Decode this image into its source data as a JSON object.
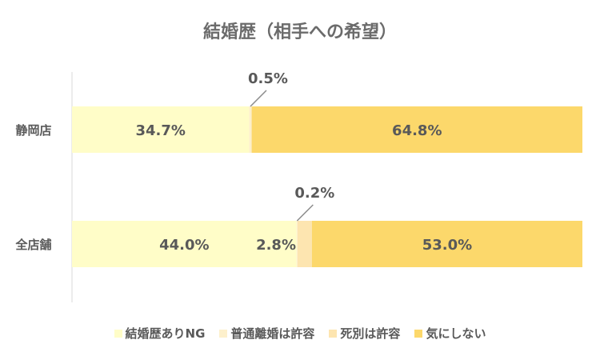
{
  "chart_data": {
    "type": "bar",
    "orientation": "horizontal",
    "stacked": "percent",
    "title": "結婚歴（相手への希望）",
    "categories": [
      "静岡店",
      "全店舗"
    ],
    "series": [
      {
        "name": "結婚歴ありNG",
        "color": "#FFFDC8",
        "values": [
          34.7,
          44.0
        ],
        "labels": [
          "34.7%",
          "44.0%"
        ]
      },
      {
        "name": "普通離婚は許容",
        "color": "#FDF0CC",
        "values": [
          0.5,
          0.2
        ],
        "labels": [
          "0.5%",
          "0.2%"
        ]
      },
      {
        "name": "死別は許容",
        "color": "#FDE5B0",
        "values": [
          0.0,
          2.8
        ],
        "labels": [
          "",
          "2.8%"
        ]
      },
      {
        "name": "気にしない",
        "color": "#FCD86B",
        "values": [
          64.8,
          53.0
        ],
        "labels": [
          "64.8%",
          "53.0%"
        ]
      }
    ],
    "callouts": [
      {
        "category": "静岡店",
        "series": "普通離婚は許容",
        "text": "0.5%"
      },
      {
        "category": "全店舗",
        "series": "普通離婚は許容",
        "text": "0.2%"
      }
    ],
    "legend_position": "bottom",
    "xlim": [
      0,
      100
    ],
    "grid": false
  }
}
